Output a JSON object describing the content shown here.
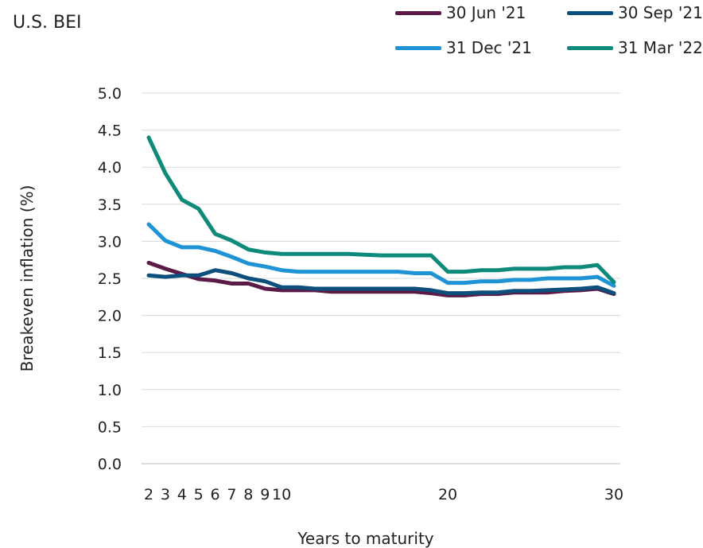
{
  "chart_data": {
    "type": "line",
    "title": "U.S. BEI",
    "xlabel": "Years to maturity",
    "ylabel": "Breakeven inflation (%)",
    "ylim": [
      0,
      5
    ],
    "xlim": [
      2,
      30
    ],
    "y_ticks": [
      "0.0",
      "0.5",
      "1.0",
      "1.5",
      "2.0",
      "2.5",
      "3.0",
      "3.5",
      "4.0",
      "4.5",
      "5.0"
    ],
    "x_ticks": [
      {
        "value": 2,
        "label": "2"
      },
      {
        "value": 3,
        "label": "3"
      },
      {
        "value": 4,
        "label": "4"
      },
      {
        "value": 5,
        "label": "5"
      },
      {
        "value": 6,
        "label": "6"
      },
      {
        "value": 7,
        "label": "7"
      },
      {
        "value": 8,
        "label": "8"
      },
      {
        "value": 9,
        "label": "9"
      },
      {
        "value": 10,
        "label": "10"
      },
      {
        "value": 20,
        "label": "20"
      },
      {
        "value": 30,
        "label": "30"
      }
    ],
    "grid": "horizontal",
    "legend_position": "top-right",
    "x": [
      2,
      3,
      4,
      5,
      6,
      7,
      8,
      9,
      10,
      11,
      12,
      13,
      14,
      15,
      16,
      17,
      18,
      19,
      20,
      21,
      22,
      23,
      24,
      25,
      26,
      27,
      28,
      29,
      30
    ],
    "series": [
      {
        "name": "30 Jun '21",
        "color": "#5c1a47",
        "values": [
          2.71,
          2.63,
          2.56,
          2.49,
          2.47,
          2.43,
          2.43,
          2.36,
          2.34,
          2.34,
          2.34,
          2.32,
          2.32,
          2.32,
          2.32,
          2.32,
          2.32,
          2.3,
          2.27,
          2.27,
          2.29,
          2.29,
          2.31,
          2.31,
          2.31,
          2.33,
          2.34,
          2.36,
          2.29
        ]
      },
      {
        "name": "30 Sep '21",
        "color": "#0d4f7c",
        "values": [
          2.54,
          2.52,
          2.54,
          2.54,
          2.61,
          2.57,
          2.5,
          2.46,
          2.38,
          2.38,
          2.36,
          2.36,
          2.36,
          2.36,
          2.36,
          2.36,
          2.36,
          2.34,
          2.3,
          2.3,
          2.31,
          2.31,
          2.33,
          2.33,
          2.34,
          2.35,
          2.36,
          2.38,
          2.3
        ]
      },
      {
        "name": "31 Dec '21",
        "color": "#1e93d6",
        "values": [
          3.23,
          3.01,
          2.92,
          2.92,
          2.87,
          2.79,
          2.7,
          2.66,
          2.61,
          2.59,
          2.59,
          2.59,
          2.59,
          2.59,
          2.59,
          2.59,
          2.57,
          2.57,
          2.44,
          2.44,
          2.46,
          2.46,
          2.48,
          2.48,
          2.5,
          2.5,
          2.5,
          2.52,
          2.4
        ]
      },
      {
        "name": "31 Mar '22",
        "color": "#0e8a7a",
        "values": [
          4.4,
          3.92,
          3.56,
          3.44,
          3.1,
          3.01,
          2.89,
          2.85,
          2.83,
          2.83,
          2.83,
          2.83,
          2.83,
          2.82,
          2.81,
          2.81,
          2.81,
          2.81,
          2.59,
          2.59,
          2.61,
          2.61,
          2.63,
          2.63,
          2.63,
          2.65,
          2.65,
          2.68,
          2.45
        ]
      }
    ]
  }
}
